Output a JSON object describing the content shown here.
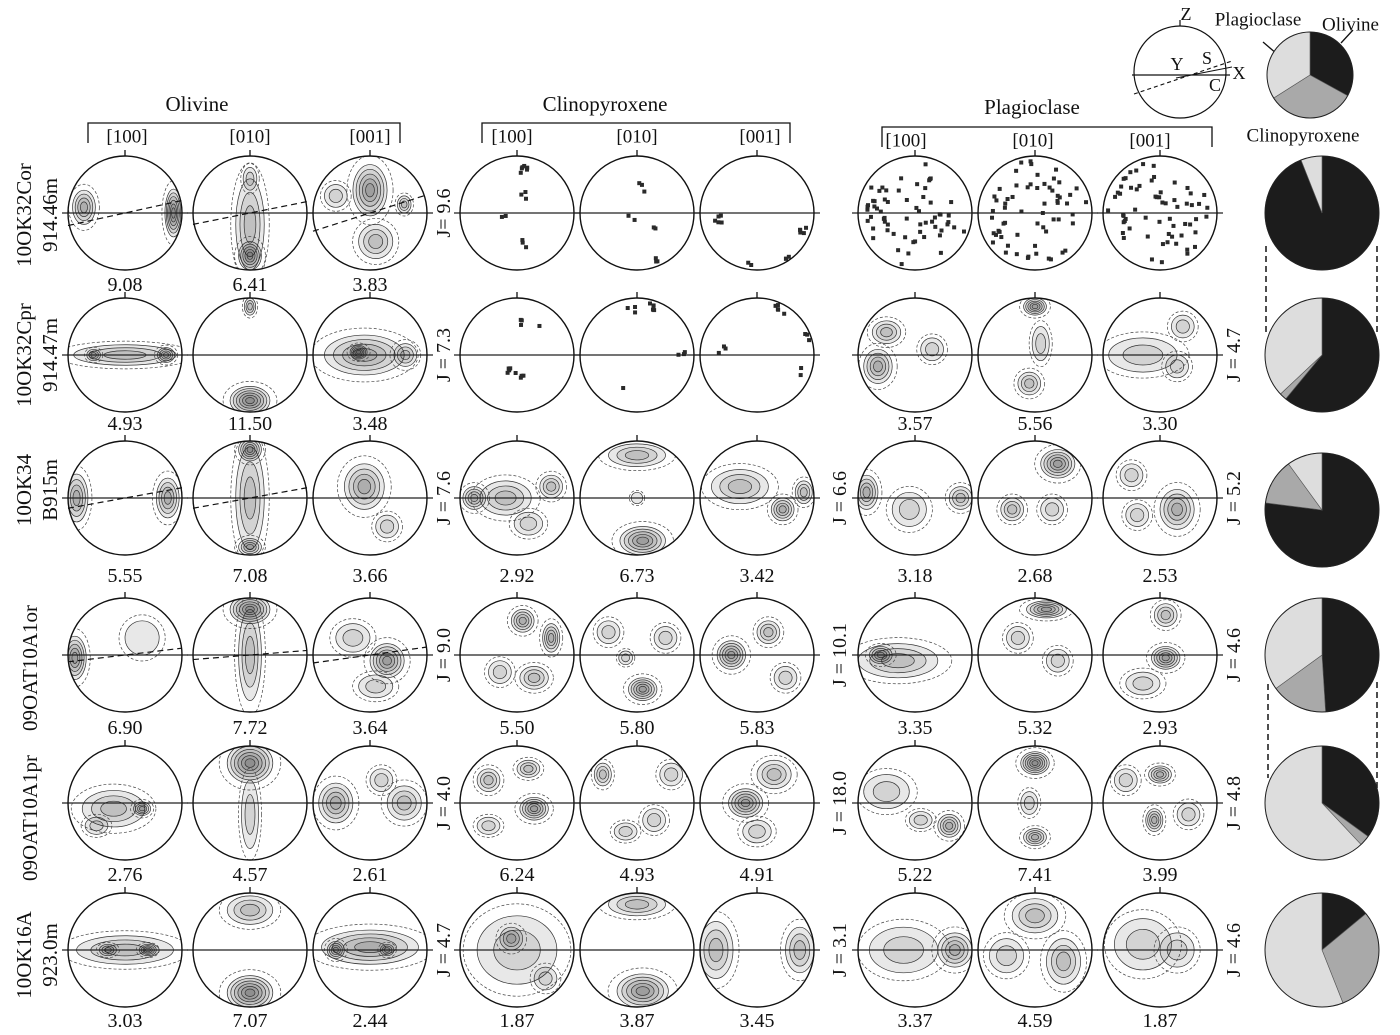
{
  "figure": {
    "group_headers": {
      "olivine": "Olivine",
      "clinopyroxene": "Clinopyroxene",
      "plagioclase": "Plagioclase"
    },
    "axes": [
      "[100]",
      "[010]",
      "[001]"
    ],
    "reference_frame": {
      "z": "Z",
      "y": "Y",
      "s": "S",
      "c": "C",
      "x": "X"
    },
    "legend": {
      "plagioclase": "Plagioclase",
      "olivine": "Olivine",
      "clinopyroxene": "Clinopyroxene",
      "modal": {
        "olivine": 0.33,
        "clinopyroxene": 0.33,
        "plagioclase": 0.34
      }
    },
    "colors": {
      "olivine": "#1c1c1c",
      "clinopyroxene": "#a9a9a9",
      "plagioclase": "#dddddd"
    }
  },
  "rows": [
    {
      "sample": [
        "10OK32Cor",
        "914.46m"
      ],
      "max": {
        "olivine": [
          "9.08",
          "6.41",
          "3.83"
        ],
        "clinopyroxene": [],
        "plagioclase": []
      },
      "j": {
        "before_clinopyroxene": "J= 9.6",
        "before_plagioclase": "",
        "after_plagioclase": ""
      },
      "modal": {
        "olivine": 0.94,
        "clinopyroxene": 0.0,
        "plagioclase": 0.06
      }
    },
    {
      "sample": [
        "10OK32Cpr",
        "914.47m"
      ],
      "max": {
        "olivine": [
          "4.93",
          "11.50",
          "3.48"
        ],
        "clinopyroxene": [],
        "plagioclase": [
          "3.57",
          "5.56",
          "3.30"
        ]
      },
      "j": {
        "before_clinopyroxene": "J = 7.3",
        "before_plagioclase": "",
        "after_plagioclase": "J = 4.7"
      },
      "modal": {
        "olivine": 0.61,
        "clinopyroxene": 0.02,
        "plagioclase": 0.37
      }
    },
    {
      "sample": [
        "10OK34",
        "B915m"
      ],
      "max": {
        "olivine": [
          "5.55",
          "7.08",
          "3.66"
        ],
        "clinopyroxene": [
          "2.92",
          "6.73",
          "3.42"
        ],
        "plagioclase": [
          "3.18",
          "2.68",
          "2.53"
        ]
      },
      "j": {
        "before_clinopyroxene": "J = 7.6",
        "before_plagioclase": "J = 6.6",
        "after_plagioclase": "J = 5.2"
      },
      "modal": {
        "olivine": 0.77,
        "clinopyroxene": 0.13,
        "plagioclase": 0.1
      }
    },
    {
      "sample": [
        "09OAT10A1or"
      ],
      "max": {
        "olivine": [
          "6.90",
          "7.72",
          "3.64"
        ],
        "clinopyroxene": [
          "5.50",
          "5.80",
          "5.83"
        ],
        "plagioclase": [
          "3.35",
          "5.32",
          "2.93"
        ]
      },
      "j": {
        "before_clinopyroxene": "J = 9.0",
        "before_plagioclase": "J = 10.1",
        "after_plagioclase": "J = 4.6"
      },
      "modal": {
        "olivine": 0.49,
        "clinopyroxene": 0.16,
        "plagioclase": 0.35
      }
    },
    {
      "sample": [
        "09OAT10A1pr"
      ],
      "max": {
        "olivine": [
          "2.76",
          "4.57",
          "2.61"
        ],
        "clinopyroxene": [
          "6.24",
          "4.93",
          "4.91"
        ],
        "plagioclase": [
          "5.22",
          "7.41",
          "3.99"
        ]
      },
      "j": {
        "before_clinopyroxene": "J = 4.0",
        "before_plagioclase": "J = 18.0",
        "after_plagioclase": "J = 4.8"
      },
      "modal": {
        "olivine": 0.35,
        "clinopyroxene": 0.03,
        "plagioclase": 0.62
      }
    },
    {
      "sample": [
        "10OK16A",
        "923.0m"
      ],
      "max": {
        "olivine": [
          "3.03",
          "7.07",
          "2.44"
        ],
        "clinopyroxene": [
          "1.87",
          "3.87",
          "3.45"
        ],
        "plagioclase": [
          "3.37",
          "4.59",
          "1.87"
        ]
      },
      "j": {
        "before_clinopyroxene": "J = 4.7",
        "before_plagioclase": "J = 3.1",
        "after_plagioclase": "J = 4.6"
      },
      "modal": {
        "olivine": 0.14,
        "clinopyroxene": 0.3,
        "plagioclase": 0.56
      }
    }
  ]
}
